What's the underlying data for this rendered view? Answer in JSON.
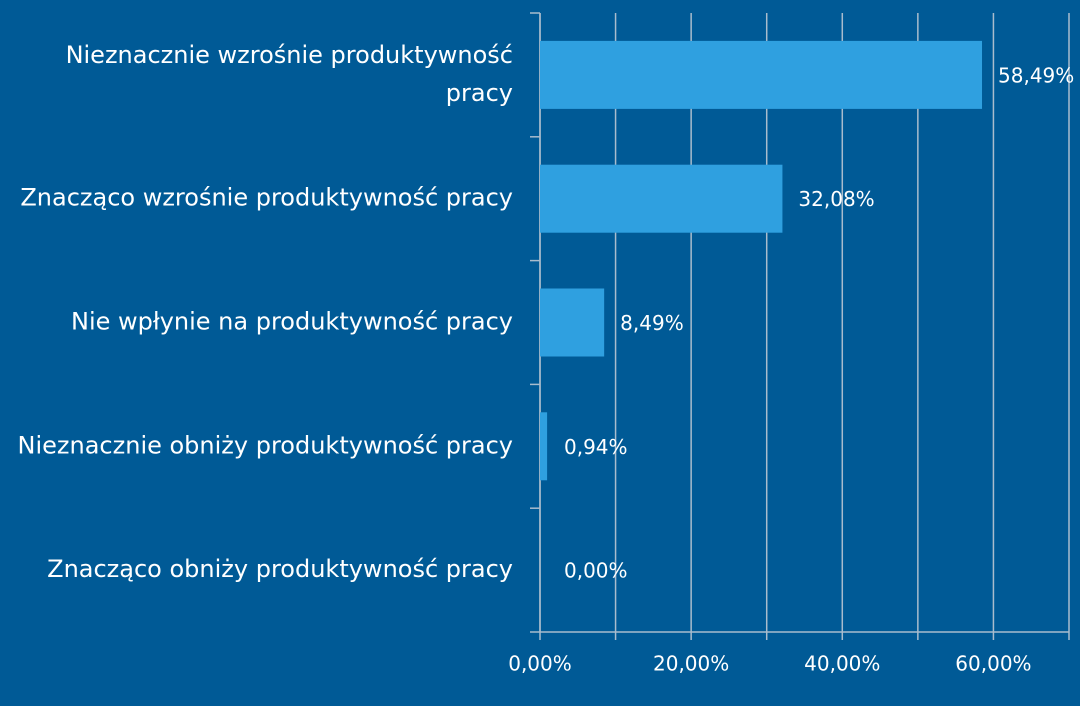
{
  "chart_data": {
    "type": "barh",
    "categories": [
      "Nieznacznie wzrośnie produktywność pracy",
      "Znacząco wzrośnie produktywność pracy",
      "Nie wpłynie na produktywność pracy",
      "Nieznacznie obniży produktywność pracy",
      "Znacząco obniży produktywność pracy"
    ],
    "values": [
      58.49,
      32.08,
      8.49,
      0.94,
      0.0
    ],
    "value_labels": [
      "58,49%",
      "32,08%",
      "8,49%",
      "0,94%",
      "0,00%"
    ],
    "color": "#2fa0e0",
    "xlim": [
      0,
      70
    ],
    "xticks": [
      {
        "value": 0,
        "label": "0,00%"
      },
      {
        "value": 20,
        "label": "20,00%"
      },
      {
        "value": 40,
        "label": "40,00%"
      },
      {
        "value": 60,
        "label": "60,00%"
      }
    ],
    "minor_xticks": [
      10,
      30,
      50,
      70
    ],
    "grid": true
  }
}
